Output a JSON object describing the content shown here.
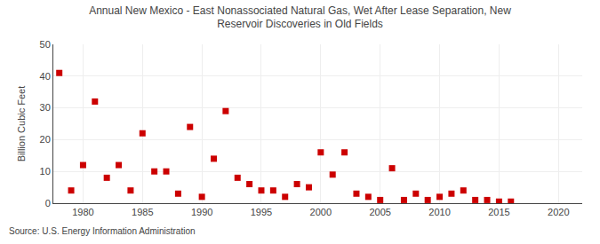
{
  "chart_data": {
    "type": "scatter",
    "title": "Annual New Mexico - East Nonassociated Natural Gas, Wet After Lease Separation, New\nReservoir Discoveries in Old Fields",
    "y_label": "Billion Cubic Feet",
    "annotations": [
      "Source: U.S. Energy Information Administration"
    ],
    "x": [
      1978,
      1979,
      1980,
      1981,
      1982,
      1983,
      1984,
      1985,
      1986,
      1987,
      1988,
      1989,
      1990,
      1991,
      1992,
      1993,
      1994,
      1995,
      1996,
      1997,
      1998,
      1999,
      2000,
      2001,
      2002,
      2003,
      2004,
      2005,
      2006,
      2007,
      2008,
      2009,
      2010,
      2011,
      2012,
      2013,
      2014,
      2015,
      2016
    ],
    "values": [
      41,
      4,
      12,
      32,
      8,
      12,
      4,
      22,
      10,
      10,
      3,
      24,
      2,
      14,
      29,
      8,
      6,
      4,
      4,
      2,
      6,
      5,
      16,
      9,
      16,
      3,
      2,
      1,
      11,
      1,
      3,
      1,
      2,
      3,
      4,
      1,
      1,
      0.5,
      0.5
    ],
    "color": "#cc0000",
    "marker": "square",
    "xlim": [
      1977.5,
      2022
    ],
    "ylim": [
      0,
      50
    ],
    "xticks": [
      1980,
      1985,
      1990,
      1995,
      2000,
      2005,
      2010,
      2015,
      2020
    ],
    "yticks": [
      0,
      10,
      20,
      30,
      40,
      50
    ],
    "grid": true
  }
}
